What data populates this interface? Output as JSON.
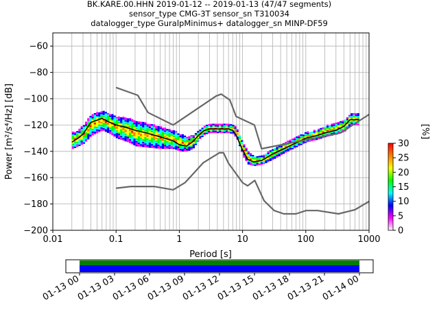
{
  "title_lines": [
    "BK.KARE.00.HHN   2019-01-12 -- 2019-01-13  (47/47 segments)",
    "sensor_type CMG-3T sensor_sn T310034",
    "datalogger_type GuralpMinimus+ datalogger_sn MINP-DF59"
  ],
  "chart_data": {
    "type": "heatmap",
    "xlabel": "Period [s]",
    "ylabel": "Power [m²/s⁴/Hz] [dB]",
    "xscale": "log",
    "xlim": [
      0.01,
      1000
    ],
    "ylim": [
      -200,
      -50
    ],
    "x_ticks": [
      0.01,
      0.1,
      1,
      10,
      100,
      1000
    ],
    "x_tick_labels": [
      "0.01",
      "0.1",
      "1",
      "10",
      "100",
      "1000"
    ],
    "y_ticks": [
      -200,
      -180,
      -160,
      -140,
      -120,
      -100,
      -80,
      -60
    ],
    "y_tick_labels": [
      "−200",
      "−180",
      "−160",
      "−140",
      "−120",
      "−100",
      "−80",
      "−60"
    ],
    "grid": true,
    "colorbar": {
      "label": "[%]",
      "range": [
        0,
        30
      ],
      "ticks": [
        "0",
        "5",
        "10",
        "15",
        "20",
        "25",
        "30"
      ],
      "colors": [
        "#ffffff",
        "#ff00ff",
        "#0000ff",
        "#00ffff",
        "#00ff00",
        "#ffff00",
        "#ff8000",
        "#ff0000"
      ]
    },
    "series": [
      {
        "role": "mode",
        "color": "#000000",
        "x": [
          0.02,
          0.025,
          0.03,
          0.04,
          0.06,
          0.08,
          0.1,
          0.15,
          0.2,
          0.3,
          0.5,
          0.8,
          1,
          1.3,
          1.6,
          2,
          2.5,
          3,
          4,
          5,
          6,
          7,
          8,
          9,
          10,
          12,
          15,
          20,
          30,
          50,
          100,
          150,
          200,
          300,
          400,
          500,
          600,
          700
        ],
        "y": [
          -133,
          -130,
          -127,
          -118,
          -115,
          -118,
          -120,
          -122,
          -124,
          -126,
          -129,
          -132,
          -135,
          -136,
          -133,
          -128,
          -124,
          -123,
          -123,
          -123,
          -123,
          -124,
          -128,
          -134,
          -139,
          -146,
          -148,
          -147,
          -142,
          -137,
          -130,
          -128,
          -126,
          -124,
          -121,
          -116,
          -116,
          -116
        ]
      },
      {
        "role": "noise-model-high",
        "color": "#666666",
        "x": [
          0.1,
          0.22,
          0.32,
          0.8,
          3.8,
          4.6,
          6.3,
          7.9,
          15.4,
          20,
          354.8,
          1000
        ],
        "y": [
          -91.5,
          -97.4,
          -110.5,
          -120,
          -98,
          -96.5,
          -101,
          -113.5,
          -120,
          -138,
          -126,
          -112
        ]
      },
      {
        "role": "noise-model-low",
        "color": "#666666",
        "x": [
          0.1,
          0.17,
          0.4,
          0.8,
          1.24,
          2.4,
          4.3,
          5,
          6,
          10,
          12,
          15.6,
          21.9,
          31.6,
          45,
          70,
          101,
          154,
          328,
          600,
          1000
        ],
        "y": [
          -168,
          -166.7,
          -166.7,
          -169.2,
          -163.7,
          -148.6,
          -141.1,
          -141.1,
          -149,
          -163.8,
          -166.2,
          -162.1,
          -177.5,
          -185,
          -187.5,
          -187.5,
          -185,
          -185,
          -187.5,
          -184.4,
          -178
        ]
      }
    ],
    "density_band": {
      "x": [
        0.02,
        0.025,
        0.03,
        0.04,
        0.06,
        0.08,
        0.1,
        0.15,
        0.2,
        0.3,
        0.5,
        0.8,
        1,
        1.3,
        1.6,
        2,
        2.5,
        3,
        4,
        5,
        6,
        7,
        8,
        9,
        10,
        12,
        15,
        20,
        30,
        50,
        100,
        150,
        200,
        300,
        400,
        500,
        600,
        700
      ],
      "upper": [
        -126,
        -124,
        -120,
        -112,
        -110,
        -112,
        -114,
        -115,
        -117,
        -119,
        -122,
        -125,
        -127,
        -130,
        -128,
        -124,
        -121,
        -120,
        -120,
        -120,
        -120,
        -120,
        -124,
        -130,
        -134,
        -141,
        -144,
        -144,
        -138,
        -133,
        -126,
        -124,
        -121,
        -119,
        -116,
        -112,
        -112,
        -112
      ],
      "lower": [
        -138,
        -136,
        -134,
        -128,
        -124,
        -127,
        -130,
        -133,
        -136,
        -137,
        -138,
        -138,
        -140,
        -140,
        -138,
        -131,
        -127,
        -126,
        -126,
        -126,
        -126,
        -127,
        -131,
        -138,
        -144,
        -150,
        -151,
        -150,
        -146,
        -140,
        -133,
        -131,
        -129,
        -127,
        -125,
        -120,
        -120,
        -120
      ]
    }
  },
  "timeline": {
    "tick_labels": [
      "01-13 00",
      "01-13 03",
      "01-13 06",
      "01-13 09",
      "01-13 12",
      "01-13 15",
      "01-13 18",
      "01-13 21",
      "01-14 00"
    ],
    "bar_colors": [
      "#008000",
      "#0000ff"
    ]
  }
}
